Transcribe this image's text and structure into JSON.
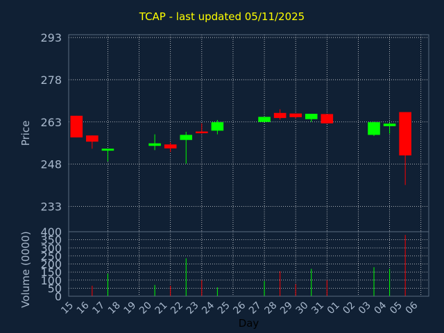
{
  "title": "TCAP - last updated 05/11/2025",
  "colors": {
    "background": "#102034",
    "up": "#00ff00",
    "down": "#ff0000",
    "grid": "#ffffff",
    "axis_text": "#a8b8cc",
    "title": "#ffff00"
  },
  "chart_data": [
    {
      "type": "candlestick",
      "ylabel": "Price",
      "ylim": [
        224,
        294
      ],
      "yticks": [
        293,
        278,
        263,
        248,
        233
      ],
      "grid": true,
      "days": [
        "15",
        "16",
        "17",
        "18",
        "19",
        "20",
        "21",
        "22",
        "23",
        "24",
        "25",
        "26",
        "27",
        "28",
        "29",
        "30",
        "31",
        "01",
        "02",
        "03",
        "04",
        "05",
        "06"
      ],
      "candles": [
        {
          "day": "15",
          "open": 265.2,
          "high": 265.2,
          "low": 257.5,
          "close": 257.5
        },
        {
          "day": "16",
          "open": 258.2,
          "high": 258.2,
          "low": 253.5,
          "close": 256.0
        },
        {
          "day": "17",
          "open": 252.8,
          "high": 253.5,
          "low": 249.0,
          "close": 253.5
        },
        {
          "day": "18",
          "open": null,
          "high": null,
          "low": null,
          "close": null
        },
        {
          "day": "19",
          "open": null,
          "high": null,
          "low": null,
          "close": null
        },
        {
          "day": "20",
          "open": 254.5,
          "high": 258.6,
          "low": 253.0,
          "close": 255.4
        },
        {
          "day": "21",
          "open": 255.0,
          "high": 255.7,
          "low": 252.3,
          "close": 253.6
        },
        {
          "day": "22",
          "open": 256.6,
          "high": 259.5,
          "low": 248.2,
          "close": 258.4
        },
        {
          "day": "23",
          "open": 259.6,
          "high": 262.5,
          "low": 258.8,
          "close": 259.0
        },
        {
          "day": "24",
          "open": 259.9,
          "high": 263.7,
          "low": 258.6,
          "close": 262.9
        },
        {
          "day": "25",
          "open": null,
          "high": null,
          "low": null,
          "close": null
        },
        {
          "day": "26",
          "open": null,
          "high": null,
          "low": null,
          "close": null
        },
        {
          "day": "27",
          "open": 263.0,
          "high": 264.8,
          "low": 263.0,
          "close": 264.8
        },
        {
          "day": "28",
          "open": 266.2,
          "high": 267.5,
          "low": 263.8,
          "close": 264.4
        },
        {
          "day": "29",
          "open": 266.0,
          "high": 266.0,
          "low": 264.2,
          "close": 264.7
        },
        {
          "day": "30",
          "open": 264.0,
          "high": 265.9,
          "low": 263.0,
          "close": 265.9
        },
        {
          "day": "31",
          "open": 265.8,
          "high": 265.8,
          "low": 262.4,
          "close": 262.5
        },
        {
          "day": "01",
          "open": null,
          "high": null,
          "low": null,
          "close": null
        },
        {
          "day": "02",
          "open": null,
          "high": null,
          "low": null,
          "close": null
        },
        {
          "day": "03",
          "open": 258.4,
          "high": 263.0,
          "low": 258.0,
          "close": 262.9
        },
        {
          "day": "04",
          "open": 261.5,
          "high": 262.8,
          "low": 258.8,
          "close": 262.4
        },
        {
          "day": "05",
          "open": 266.5,
          "high": 266.5,
          "low": 240.6,
          "close": 251.1
        },
        {
          "day": "06",
          "open": null,
          "high": null,
          "low": null,
          "close": null
        }
      ]
    },
    {
      "type": "bar",
      "ylabel": "Volume (0000)",
      "ylim": [
        0,
        400
      ],
      "yticks": [
        0,
        50,
        100,
        150,
        200,
        250,
        300,
        350,
        400
      ],
      "xlabel": "Day",
      "categories": [
        "15",
        "16",
        "17",
        "18",
        "19",
        "20",
        "21",
        "22",
        "23",
        "24",
        "25",
        "26",
        "27",
        "28",
        "29",
        "30",
        "31",
        "01",
        "02",
        "03",
        "04",
        "05",
        "06"
      ],
      "values": [
        0,
        65,
        140,
        0,
        0,
        70,
        65,
        235,
        100,
        55,
        0,
        0,
        95,
        155,
        75,
        170,
        100,
        0,
        0,
        180,
        170,
        380,
        0
      ],
      "direction": [
        "down",
        "down",
        "up",
        "none",
        "none",
        "up",
        "down",
        "up",
        "down",
        "up",
        "none",
        "none",
        "up",
        "down",
        "down",
        "up",
        "down",
        "none",
        "none",
        "up",
        "up",
        "down",
        "none"
      ]
    }
  ]
}
